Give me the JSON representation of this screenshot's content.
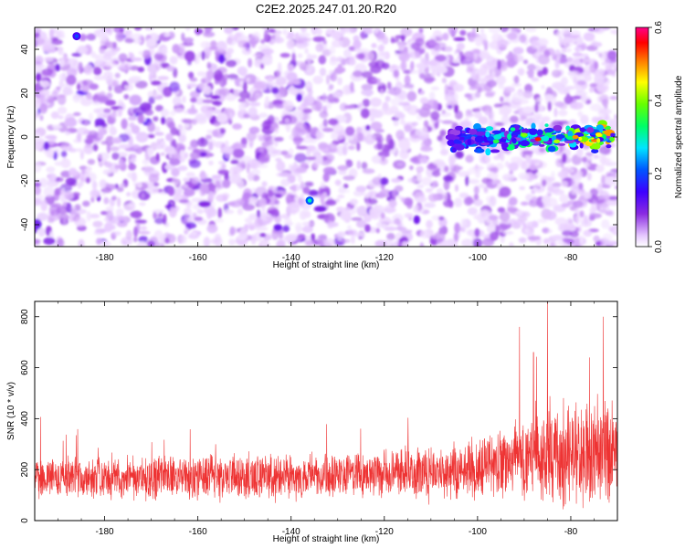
{
  "figure": {
    "title": "C2E2.2025.247.01.20.R20"
  },
  "chart_data": [
    {
      "type": "heatmap",
      "xlabel": "Height of straight line (km)",
      "ylabel": "Frequency (Hz)",
      "xlim": [
        -195,
        -70
      ],
      "ylim": [
        -50,
        50
      ],
      "xticks": [
        -180,
        -160,
        -140,
        -120,
        -100,
        -80
      ],
      "yticks": [
        -40,
        -20,
        0,
        20,
        40
      ],
      "colorbar": {
        "label": "Normalized spectral amplitude",
        "range": [
          0,
          0.6
        ],
        "ticks": [
          0.0,
          0.2,
          0.4,
          0.6
        ],
        "colormap": "rainbow (white, violet, blue, cyan, green, yellow, red, magenta)"
      },
      "features": [
        {
          "name": "signal band",
          "x_range": [
            -106,
            -71
          ],
          "freq_center": -1,
          "freq_halfwidth": 4,
          "peak_amplitude": 0.5
        },
        {
          "name": "spot",
          "x": -136,
          "freq": -29,
          "amplitude": 0.3
        },
        {
          "name": "spot",
          "x": -186,
          "freq": 46,
          "amplitude": 0.2
        }
      ],
      "background": "scattered violet/purple noise speckle, amplitude 0.05-0.15"
    },
    {
      "type": "line",
      "xlabel": "Height of straight line (km)",
      "ylabel": "SNR (10 * v/v)",
      "xlim": [
        -195,
        -70
      ],
      "ylim": [
        0,
        860
      ],
      "xticks": [
        -180,
        -160,
        -140,
        -120,
        -100,
        -80
      ],
      "yticks": [
        0,
        200,
        400,
        600,
        800
      ],
      "series_color": "#ee3333",
      "trend": [
        {
          "x": -195,
          "mean": 170,
          "spread": 110
        },
        {
          "x": -160,
          "mean": 170,
          "spread": 110
        },
        {
          "x": -130,
          "mean": 180,
          "spread": 120
        },
        {
          "x": -110,
          "mean": 190,
          "spread": 130
        },
        {
          "x": -100,
          "mean": 210,
          "spread": 160
        },
        {
          "x": -90,
          "mean": 240,
          "spread": 220
        },
        {
          "x": -80,
          "mean": 260,
          "spread": 260
        },
        {
          "x": -70,
          "mean": 270,
          "spread": 300
        }
      ],
      "spikes": [
        {
          "x": -85,
          "y": 860
        },
        {
          "x": -91,
          "y": 760
        },
        {
          "x": -73,
          "y": 800
        },
        {
          "x": -76,
          "y": 640
        },
        {
          "x": -88,
          "y": 660
        }
      ]
    }
  ]
}
